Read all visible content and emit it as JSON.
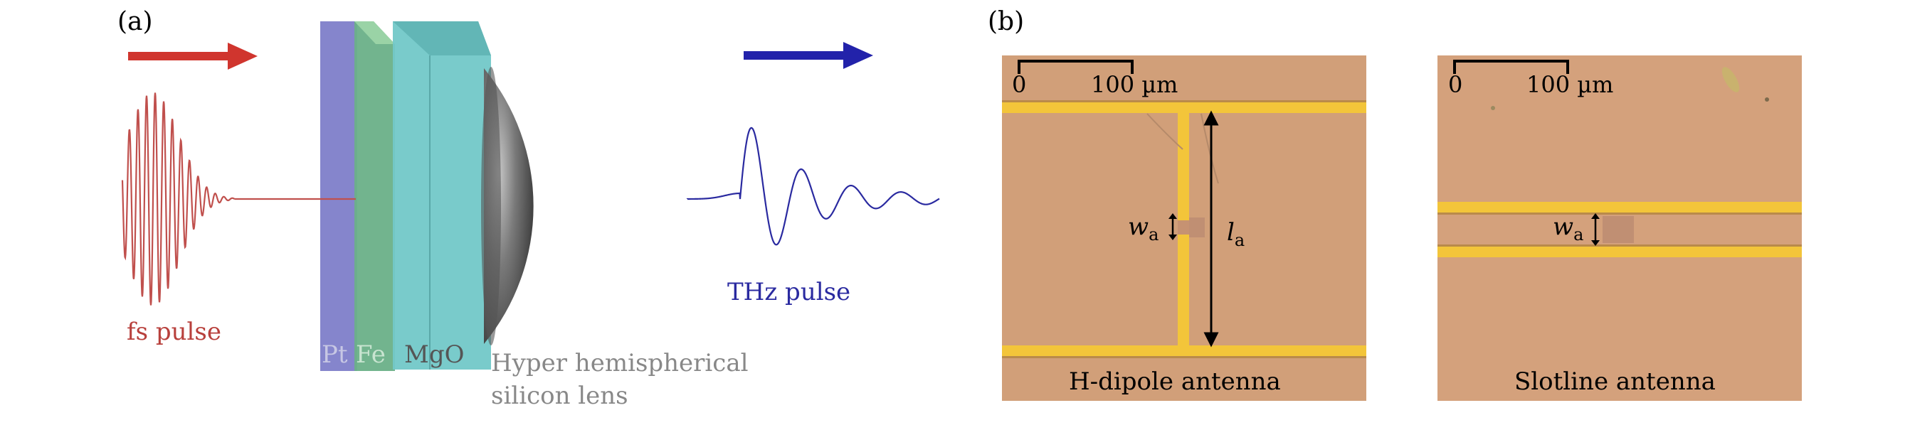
{
  "panel_a": {
    "label": "(a)",
    "fs_pulse_label": "fs pulse",
    "thz_pulse_label": "THz pulse",
    "layer_pt": "Pt",
    "layer_fe": "Fe",
    "layer_mgo": "MgO",
    "lens_line1": "Hyper hemispherical",
    "lens_line2": "silicon lens"
  },
  "panel_b": {
    "label": "(b)",
    "h_dipole": {
      "scale_zero": "0",
      "scale_value": "100 µm",
      "w_label": "w",
      "w_sub": "a",
      "l_label": "l",
      "l_sub": "a",
      "caption": "H-dipole antenna"
    },
    "slotline": {
      "scale_zero": "0",
      "scale_value": "100 µm",
      "w_label": "w",
      "w_sub": "a",
      "caption": "Slotline antenna"
    }
  },
  "colors": {
    "fs_pulse": "#c0504d",
    "thz_pulse": "#2a2aa0",
    "pt_layer": "#8585cc",
    "fe_layer": "#6ab088",
    "mgo_layer": "#72c8c8",
    "gold_trace": "#f3c53a",
    "substrate": "#d19f79"
  }
}
